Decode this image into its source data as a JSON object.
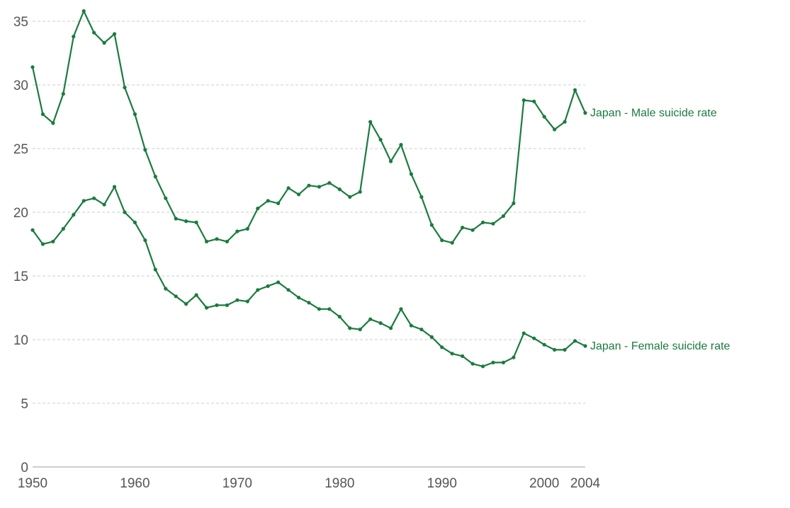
{
  "chart_data": {
    "type": "line",
    "x_ticks": [
      1950,
      1960,
      1970,
      1980,
      1990,
      2000,
      2004
    ],
    "y_ticks": [
      0,
      5,
      10,
      15,
      20,
      25,
      30,
      35
    ],
    "xlim": [
      1950,
      2004
    ],
    "ylim": [
      0,
      36
    ],
    "grid": true,
    "colors": {
      "series": "#1b7b3f",
      "grid": "#cccccc",
      "axis": "#bdbdbd",
      "tick_text": "#555555"
    },
    "x": [
      1950,
      1951,
      1952,
      1953,
      1954,
      1955,
      1956,
      1957,
      1958,
      1959,
      1960,
      1961,
      1962,
      1963,
      1964,
      1965,
      1966,
      1967,
      1968,
      1969,
      1970,
      1971,
      1972,
      1973,
      1974,
      1975,
      1976,
      1977,
      1978,
      1979,
      1980,
      1981,
      1982,
      1983,
      1984,
      1985,
      1986,
      1987,
      1988,
      1989,
      1990,
      1991,
      1992,
      1993,
      1994,
      1995,
      1996,
      1997,
      1998,
      1999,
      2000,
      2001,
      2002,
      2003,
      2004
    ],
    "series": [
      {
        "name": "Japan - Male suicide rate",
        "values": [
          31.4,
          27.7,
          27.0,
          29.3,
          33.8,
          35.8,
          34.1,
          33.3,
          34.0,
          29.8,
          27.7,
          24.9,
          22.8,
          21.1,
          19.5,
          19.3,
          19.2,
          17.7,
          17.9,
          17.7,
          18.5,
          18.7,
          20.3,
          20.9,
          20.7,
          21.9,
          21.4,
          22.1,
          22.0,
          22.3,
          21.8,
          21.2,
          21.6,
          27.1,
          25.7,
          24.0,
          25.3,
          23.0,
          21.2,
          19.0,
          17.8,
          17.6,
          18.8,
          18.6,
          19.2,
          19.1,
          19.7,
          20.7,
          28.8,
          28.7,
          27.5,
          26.5,
          27.1,
          29.6,
          27.8
        ]
      },
      {
        "name": "Japan - Female suicide rate",
        "values": [
          18.6,
          17.5,
          17.7,
          18.7,
          19.8,
          20.9,
          21.1,
          20.6,
          22.0,
          20.0,
          19.2,
          17.8,
          15.5,
          14.0,
          13.4,
          12.8,
          13.5,
          12.5,
          12.7,
          12.7,
          13.1,
          13.0,
          13.9,
          14.2,
          14.5,
          13.9,
          13.3,
          12.9,
          12.4,
          12.4,
          11.8,
          10.9,
          10.8,
          11.6,
          11.3,
          10.9,
          12.4,
          11.1,
          10.8,
          10.2,
          9.4,
          8.9,
          8.7,
          8.1,
          7.9,
          8.2,
          8.2,
          8.6,
          10.5,
          10.1,
          9.6,
          9.2,
          9.2,
          9.9,
          9.5
        ]
      }
    ]
  }
}
